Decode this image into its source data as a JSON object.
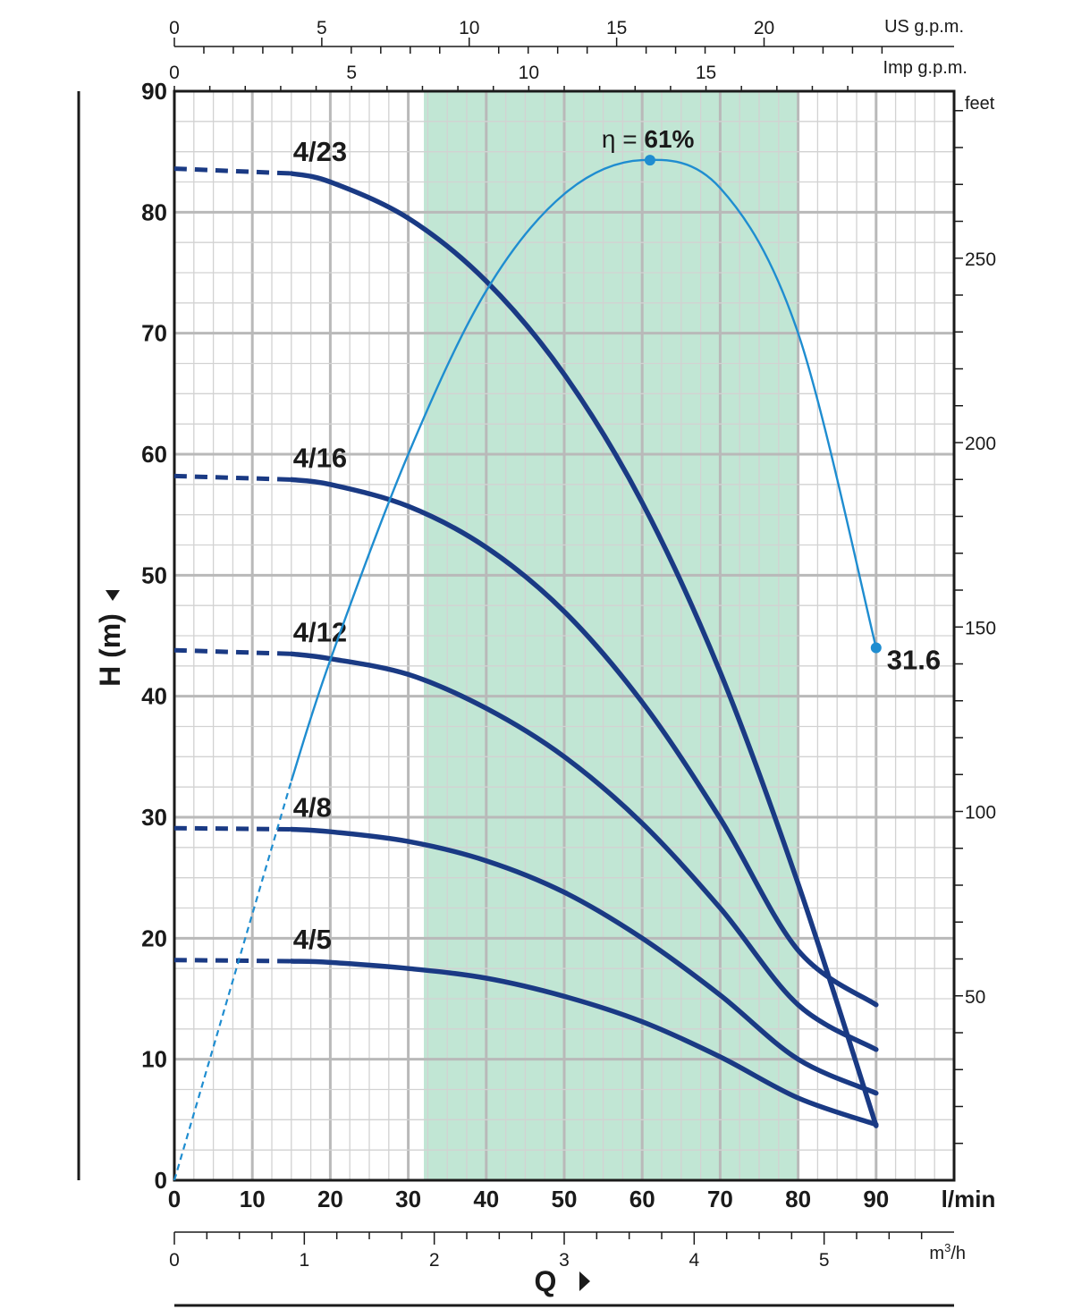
{
  "chart_data": {
    "type": "line",
    "xlabel": "Q",
    "ylabel": "H (m)",
    "x_unit": "l/min",
    "xlim": [
      0,
      100
    ],
    "ylim": [
      0,
      90
    ],
    "x_ticks": [
      0,
      10,
      20,
      30,
      40,
      50,
      60,
      70,
      80,
      90
    ],
    "y_ticks": [
      0,
      10,
      20,
      30,
      40,
      50,
      60,
      70,
      80,
      90
    ],
    "grid": true,
    "shaded_range": [
      32,
      80
    ],
    "shaded_color": "#c1e6d4",
    "series": [
      {
        "name": "4/23",
        "color": "#1a3a84",
        "solid_from": 15,
        "x": [
          0,
          15,
          20,
          30,
          40,
          50,
          60,
          70,
          80,
          90
        ],
        "y": [
          83.6,
          83.2,
          82.5,
          79.5,
          74.3,
          66.6,
          56.0,
          42.0,
          24.5,
          4.5
        ]
      },
      {
        "name": "4/16",
        "color": "#1a3a84",
        "solid_from": 15,
        "x": [
          0,
          15,
          20,
          30,
          40,
          50,
          60,
          70,
          80,
          90
        ],
        "y": [
          58.2,
          57.9,
          57.5,
          55.7,
          52.3,
          47.0,
          39.5,
          29.9,
          19.0,
          14.5
        ]
      },
      {
        "name": "4/12",
        "color": "#1a3a84",
        "solid_from": 15,
        "x": [
          0,
          15,
          20,
          30,
          40,
          50,
          60,
          70,
          80,
          90
        ],
        "y": [
          43.8,
          43.5,
          43.1,
          41.8,
          39.0,
          35.0,
          29.5,
          22.5,
          14.5,
          10.8
        ]
      },
      {
        "name": "4/8",
        "color": "#1a3a84",
        "solid_from": 15,
        "x": [
          0,
          15,
          20,
          30,
          40,
          50,
          60,
          70,
          80,
          90
        ],
        "y": [
          29.1,
          29.0,
          28.8,
          28.0,
          26.4,
          23.8,
          20.0,
          15.3,
          10.0,
          7.2
        ]
      },
      {
        "name": "4/5",
        "color": "#1a3a84",
        "solid_from": 15,
        "x": [
          0,
          15,
          20,
          30,
          40,
          50,
          60,
          70,
          80,
          90
        ],
        "y": [
          18.2,
          18.1,
          18.0,
          17.5,
          16.7,
          15.2,
          13.1,
          10.2,
          6.8,
          4.6
        ]
      }
    ],
    "efficiency_curve": {
      "color": "#1f8dd0",
      "dashed_until": 15,
      "x": [
        0,
        15,
        20,
        30,
        40,
        50,
        60,
        70,
        80,
        90
      ],
      "y": [
        0,
        33.0,
        43.0,
        60.0,
        73.5,
        81.5,
        84.3,
        82.0,
        70.0,
        44.0
      ],
      "peak": {
        "x": 61,
        "y": 84.3,
        "label_symbol": "η =",
        "label_value": "61%"
      },
      "end": {
        "x": 90,
        "y": 44,
        "label": "31.6"
      }
    },
    "secondary_axes": {
      "top_us": {
        "label": "US g.p.m.",
        "max": 25,
        "ticks": [
          0,
          5,
          10,
          15,
          20
        ]
      },
      "top_imp": {
        "label": "Imp g.p.m.",
        "max": 20,
        "ticks": [
          0,
          5,
          10,
          15
        ]
      },
      "right_feet": {
        "label": "feet",
        "max": 295,
        "ticks": [
          50,
          100,
          150,
          200,
          250
        ]
      },
      "bottom_m3h": {
        "label_main": "m",
        "label_sup": "3",
        "label_tail": "/h",
        "max": 6,
        "ticks": [
          0,
          1,
          2,
          3,
          4,
          5
        ]
      }
    }
  }
}
